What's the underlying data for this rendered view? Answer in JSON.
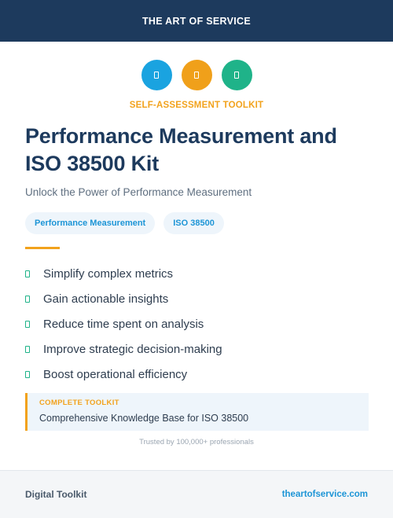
{
  "header": {
    "brand": "THE ART OF SERVICE"
  },
  "icons": [
    {
      "name": "blue-badge-icon",
      "color": "#1aa3e0"
    },
    {
      "name": "orange-badge-icon",
      "color": "#f0a01a"
    },
    {
      "name": "green-badge-icon",
      "color": "#1fb389"
    }
  ],
  "kicker": "SELF-ASSESSMENT TOOLKIT",
  "title": "Performance Measurement and ISO 38500 Kit",
  "subtitle": "Unlock the Power of Performance Measurement",
  "tags": [
    "Performance Measurement",
    "ISO 38500"
  ],
  "benefits": [
    "Simplify complex metrics",
    "Gain actionable insights",
    "Reduce time spent on analysis",
    "Improve strategic decision-making",
    "Boost operational efficiency"
  ],
  "callout": {
    "label": "COMPLETE TOOLKIT",
    "description": "Comprehensive Knowledge Base for ISO 38500"
  },
  "trusted": "Trusted by 100,000+ professionals",
  "footer": {
    "left": "Digital Toolkit",
    "right": "theartofservice.com"
  },
  "colors": {
    "navy": "#1d3a5d",
    "accent_orange": "#f2a21c",
    "accent_blue": "#1d95d6",
    "accent_green": "#1fb389"
  }
}
